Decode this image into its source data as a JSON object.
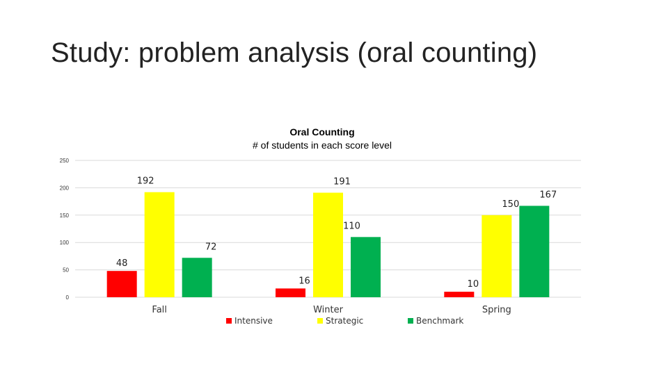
{
  "slide": {
    "title": "Study: problem analysis (oral counting)"
  },
  "chart_data": {
    "type": "bar",
    "title": "Oral Counting",
    "subtitle": "# of students in each score level",
    "categories": [
      "Fall",
      "Winter",
      "Spring"
    ],
    "series": [
      {
        "name": "Intensive",
        "color": "#ff0000",
        "values": [
          48,
          16,
          10
        ]
      },
      {
        "name": "Strategic",
        "color": "#ffff00",
        "values": [
          192,
          191,
          150
        ]
      },
      {
        "name": "Benchmark",
        "color": "#00b050",
        "values": [
          72,
          110,
          167
        ]
      }
    ],
    "ylim": [
      0,
      250
    ],
    "yticks": [
      "0",
      "50",
      "100",
      "150",
      "200",
      "250"
    ],
    "grid": true,
    "legend_position": "bottom"
  }
}
